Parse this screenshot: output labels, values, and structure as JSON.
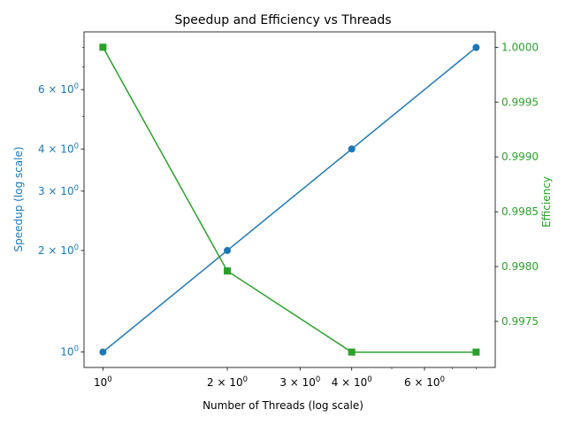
{
  "chart_data": {
    "type": "line",
    "title": "Speedup and Efficiency vs Threads",
    "xlabel": "Number of Threads (log scale)",
    "ylabel_left": "Speedup (log scale)",
    "ylabel_right": "Efficiency",
    "x_scale": "log",
    "y_left_scale": "log",
    "y_right_scale": "linear",
    "x": [
      1,
      2,
      4,
      8
    ],
    "xlim": [
      0.9,
      8.9
    ],
    "ylim_left": [
      0.9,
      8.9
    ],
    "ylim_right": [
      0.99708,
      1.00014
    ],
    "x_ticks": [
      {
        "value": 1,
        "base": "10",
        "exp": "0"
      },
      {
        "value": 2,
        "base": "2 × 10",
        "exp": "0"
      },
      {
        "value": 3,
        "base": "3 × 10",
        "exp": "0"
      },
      {
        "value": 4,
        "base": "4 × 10",
        "exp": "0"
      },
      {
        "value": 6,
        "base": "6 × 10",
        "exp": "0"
      }
    ],
    "x_minor_ticks": [
      5,
      7,
      8
    ],
    "y_left_ticks": [
      {
        "value": 1,
        "base": "10",
        "exp": "0"
      },
      {
        "value": 2,
        "base": "2 × 10",
        "exp": "0"
      },
      {
        "value": 3,
        "base": "3 × 10",
        "exp": "0"
      },
      {
        "value": 4,
        "base": "4 × 10",
        "exp": "0"
      },
      {
        "value": 6,
        "base": "6 × 10",
        "exp": "0"
      }
    ],
    "y_left_minor_ticks": [
      5,
      7,
      8
    ],
    "y_right_ticks": [
      0.9975,
      0.998,
      0.9985,
      0.999,
      0.9995,
      1.0
    ],
    "y_right_tick_labels": [
      "0.9975",
      "0.9980",
      "0.9985",
      "0.9990",
      "0.9995",
      "1.0000"
    ],
    "series": [
      {
        "axis": "left",
        "values": [
          1,
          2,
          4,
          8
        ],
        "marker": "circle",
        "color": "#1f77b4"
      },
      {
        "axis": "right",
        "values": [
          1.0,
          0.99796,
          0.99722,
          0.99722
        ],
        "marker": "square",
        "color": "#2ca02c"
      }
    ],
    "grid": false
  }
}
